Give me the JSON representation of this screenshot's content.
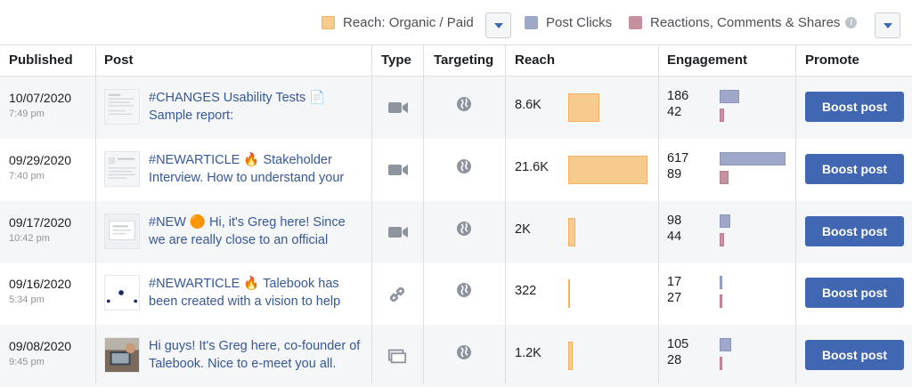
{
  "legend": {
    "reach_label": "Reach: Organic / Paid",
    "post_clicks_label": "Post Clicks",
    "reactions_label": "Reactions, Comments & Shares",
    "info_glyph": "i",
    "colors": {
      "reach": "#f7cb8d",
      "clicks": "#9fa8c9",
      "reactions": "#c7909f"
    }
  },
  "table": {
    "headers": [
      "Published",
      "Post",
      "Type",
      "Targeting",
      "Reach",
      "Engagement",
      "Promote"
    ],
    "rows": [
      {
        "date": "10/07/2020",
        "time": "7:49 pm",
        "post": "#CHANGES Usability Tests 📄 Sample report:",
        "type": "video",
        "reach": "8.6K",
        "reach_value": 8600,
        "clicks": "186",
        "reactions": "42",
        "boost": "Boost post"
      },
      {
        "date": "09/29/2020",
        "time": "7:40 pm",
        "post": "#NEWARTICLE 🔥 Stakeholder Interview. How to understand your",
        "type": "video",
        "reach": "21.6K",
        "reach_value": 21600,
        "clicks": "617",
        "reactions": "89",
        "boost": "Boost post"
      },
      {
        "date": "09/17/2020",
        "time": "10:42 pm",
        "post": "#NEW 🟠 Hi, it's Greg here! Since we are really close to an official",
        "type": "video",
        "reach": "2K",
        "reach_value": 2000,
        "clicks": "98",
        "reactions": "44",
        "boost": "Boost post"
      },
      {
        "date": "09/16/2020",
        "time": "5:34 pm",
        "post": "#NEWARTICLE 🔥 Talebook has been created with a vision to help",
        "type": "link",
        "reach": "322",
        "reach_value": 322,
        "clicks": "17",
        "reactions": "27",
        "boost": "Boost post"
      },
      {
        "date": "09/08/2020",
        "time": "9:45 pm",
        "post": "Hi guys! It's Greg here, co-founder of Talebook. Nice to e-meet you all.",
        "type": "album",
        "reach": "1.2K",
        "reach_value": 1200,
        "clicks": "105",
        "reactions": "28",
        "boost": "Boost post"
      }
    ]
  }
}
